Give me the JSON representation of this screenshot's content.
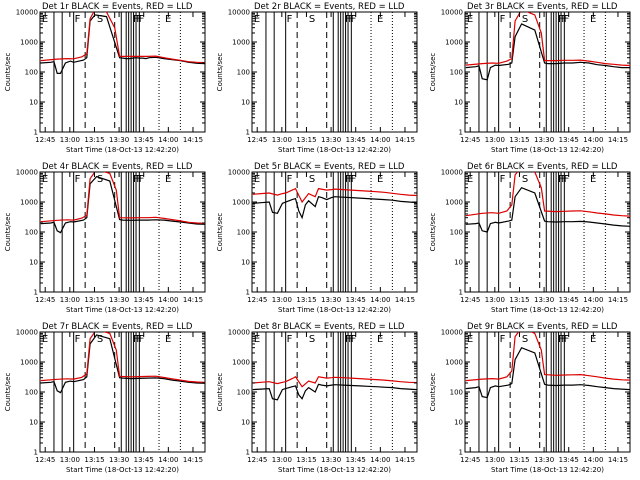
{
  "chart_data": {
    "type": "line",
    "ylabel": "Counts/sec",
    "xlabel": "Start Time (18-Oct-13 12:42:20)",
    "y_scale": "log",
    "ylim": [
      1,
      10000
    ],
    "y_ticks": [
      "1",
      "10",
      "100",
      "1000",
      "10000"
    ],
    "x_range_min": [
      -0.5,
      100
    ],
    "x_ticks": [
      "12:45",
      "13:00",
      "13:15",
      "13:30",
      "13:45",
      "14:00",
      "14:15"
    ],
    "x_tick_minutes": [
      2.67,
      17.67,
      32.67,
      47.67,
      62.67,
      77.67,
      92.67
    ],
    "series_colors": {
      "events": "#000000",
      "lld": "#dd0000"
    },
    "panels": [
      {
        "title": "Det 1r BLACK = Events, RED = LLD",
        "event_labels": [
          {
            "label": "E",
            "t": 0
          },
          {
            "label": "F",
            "t": 20
          },
          {
            "label": "S",
            "t": 33.5
          },
          {
            "label": "F",
            "t": 55.5
          },
          {
            "label": "F",
            "t": 57.5
          },
          {
            "label": "F",
            "t": 59
          },
          {
            "label": "E",
            "t": 75
          }
        ],
        "events_t": [
          0,
          6,
          8,
          10,
          12,
          15,
          18,
          20,
          26,
          28,
          30,
          33,
          40,
          48,
          50,
          52,
          54,
          56,
          58,
          60,
          62,
          64,
          66,
          70,
          75,
          85,
          90,
          95,
          100
        ],
        "events_v": [
          200,
          210,
          220,
          90,
          90,
          200,
          230,
          210,
          250,
          300,
          5000,
          8000,
          7000,
          300,
          290,
          280,
          280,
          290,
          300,
          290,
          290,
          280,
          300,
          310,
          280,
          240,
          210,
          195,
          190
        ],
        "lld_t": [
          0,
          10,
          16,
          20,
          25,
          28,
          30,
          33,
          40,
          45,
          48,
          55,
          60,
          65,
          70,
          75,
          80,
          85,
          90,
          95,
          100
        ],
        "lld_v": [
          240,
          270,
          280,
          275,
          320,
          400,
          6000,
          12000,
          10000,
          3000,
          330,
          330,
          330,
          330,
          340,
          300,
          270,
          245,
          220,
          210,
          205
        ]
      },
      {
        "title": "Det 2r BLACK = Events, RED = LLD",
        "event_labels": [
          {
            "label": "E",
            "t": 0
          },
          {
            "label": "F",
            "t": 20
          },
          {
            "label": "S",
            "t": 33.5
          },
          {
            "label": "F",
            "t": 55.5
          },
          {
            "label": "F",
            "t": 57.5
          },
          {
            "label": "F",
            "t": 59
          },
          {
            "label": "E",
            "t": 75
          }
        ],
        "events_t": [],
        "events_v": [],
        "lld_t": [],
        "lld_v": []
      },
      {
        "title": "Det 3r BLACK = Events, RED = LLD",
        "event_labels": [
          {
            "label": "E",
            "t": 0
          },
          {
            "label": "F",
            "t": 20
          },
          {
            "label": "S",
            "t": 33.5
          },
          {
            "label": "F",
            "t": 55.5
          },
          {
            "label": "F",
            "t": 57.5
          },
          {
            "label": "F",
            "t": 59
          },
          {
            "label": "E",
            "t": 75
          }
        ],
        "events_t": [
          0,
          6,
          8,
          10,
          13,
          15,
          18,
          20,
          26,
          28,
          30,
          34,
          42,
          48,
          50,
          55,
          60,
          65,
          70,
          75,
          80,
          85,
          90,
          95,
          100
        ],
        "events_v": [
          140,
          150,
          160,
          60,
          55,
          140,
          170,
          165,
          180,
          200,
          1500,
          4000,
          2500,
          200,
          190,
          190,
          200,
          200,
          210,
          200,
          175,
          165,
          150,
          140,
          140
        ],
        "lld_t": [
          0,
          10,
          16,
          20,
          25,
          28,
          30,
          34,
          42,
          46,
          48,
          55,
          60,
          65,
          70,
          75,
          80,
          85,
          90,
          95,
          100
        ],
        "lld_v": [
          170,
          190,
          200,
          195,
          230,
          280,
          5000,
          12000,
          8000,
          2000,
          240,
          240,
          245,
          245,
          250,
          230,
          210,
          190,
          180,
          170,
          165
        ]
      },
      {
        "title": "Det 4r BLACK = Events, RED = LLD",
        "event_labels": [
          {
            "label": "E",
            "t": 0
          },
          {
            "label": "F",
            "t": 20
          },
          {
            "label": "S",
            "t": 33.5
          },
          {
            "label": "F",
            "t": 55.5
          },
          {
            "label": "F",
            "t": 57.5
          },
          {
            "label": "F",
            "t": 59
          },
          {
            "label": "E",
            "t": 75
          }
        ],
        "events_t": [
          0,
          6,
          8,
          10,
          12,
          15,
          18,
          20,
          26,
          28,
          30,
          34,
          42,
          48,
          50,
          55,
          60,
          65,
          70,
          75,
          80,
          85,
          90,
          95,
          100
        ],
        "events_v": [
          190,
          200,
          210,
          110,
          95,
          200,
          220,
          215,
          250,
          300,
          4000,
          7000,
          5000,
          260,
          250,
          245,
          250,
          250,
          255,
          250,
          230,
          215,
          200,
          185,
          180
        ],
        "lld_t": [
          0,
          10,
          16,
          20,
          25,
          28,
          30,
          34,
          42,
          46,
          48,
          55,
          60,
          65,
          70,
          75,
          80,
          85,
          90,
          95,
          100
        ],
        "lld_v": [
          220,
          245,
          255,
          250,
          290,
          360,
          6000,
          12000,
          9000,
          2500,
          300,
          295,
          300,
          300,
          310,
          285,
          260,
          235,
          210,
          200,
          195
        ]
      },
      {
        "title": "Det 5r BLACK = Events, RED = LLD",
        "event_labels": [
          {
            "label": "E",
            "t": 0
          },
          {
            "label": "F",
            "t": 20
          },
          {
            "label": "S",
            "t": 33.5
          },
          {
            "label": "F",
            "t": 55.5
          },
          {
            "label": "F",
            "t": 57.5
          },
          {
            "label": "F",
            "t": 59
          },
          {
            "label": "E",
            "t": 75
          }
        ],
        "events_t": [
          0,
          5,
          10,
          12,
          15,
          18,
          20,
          24,
          26,
          28,
          30,
          32,
          34,
          38,
          40,
          42,
          45,
          48,
          50,
          55,
          60,
          65,
          70,
          75,
          80,
          85,
          90,
          95,
          100
        ],
        "events_v": [
          900,
          950,
          1000,
          450,
          420,
          900,
          1000,
          1200,
          1300,
          500,
          300,
          800,
          1100,
          700,
          1500,
          1400,
          1200,
          1400,
          1500,
          1450,
          1400,
          1350,
          1300,
          1250,
          1200,
          1150,
          1050,
          1000,
          950
        ],
        "lld_t": [
          0,
          5,
          10,
          15,
          18,
          20,
          24,
          26,
          30,
          34,
          38,
          40,
          45,
          48,
          50,
          55,
          60,
          65,
          70,
          75,
          80,
          85,
          90,
          95,
          100
        ],
        "lld_v": [
          1800,
          1900,
          2000,
          1700,
          1900,
          2000,
          2500,
          2800,
          1000,
          1900,
          1500,
          2800,
          2500,
          2600,
          2700,
          2600,
          2500,
          2400,
          2300,
          2200,
          2100,
          1950,
          1800,
          1700,
          1650
        ]
      },
      {
        "title": "Det 6r BLACK = Events, RED = LLD",
        "event_labels": [
          {
            "label": "E",
            "t": 0
          },
          {
            "label": "F",
            "t": 20
          },
          {
            "label": "S",
            "t": 33.5
          },
          {
            "label": "F",
            "t": 55.5
          },
          {
            "label": "F",
            "t": 57.5
          },
          {
            "label": "F",
            "t": 59
          },
          {
            "label": "E",
            "t": 75
          }
        ],
        "events_t": [
          0,
          6,
          8,
          10,
          13,
          15,
          18,
          20,
          26,
          28,
          30,
          34,
          42,
          48,
          50,
          55,
          60,
          65,
          70,
          75,
          80,
          85,
          90,
          95,
          100
        ],
        "events_v": [
          180,
          190,
          200,
          110,
          100,
          190,
          210,
          200,
          230,
          250,
          1500,
          3000,
          2000,
          230,
          220,
          215,
          220,
          220,
          225,
          215,
          200,
          185,
          170,
          160,
          155
        ],
        "lld_t": [
          0,
          10,
          16,
          20,
          25,
          28,
          30,
          34,
          42,
          46,
          48,
          55,
          60,
          65,
          70,
          75,
          80,
          85,
          90,
          95,
          100
        ],
        "lld_v": [
          350,
          420,
          440,
          420,
          500,
          800,
          8000,
          15000,
          10000,
          3000,
          500,
          480,
          490,
          500,
          510,
          470,
          430,
          400,
          370,
          350,
          340
        ]
      },
      {
        "title": "Det 7r BLACK = Events, RED = LLD",
        "event_labels": [
          {
            "label": "E",
            "t": 0
          },
          {
            "label": "F",
            "t": 20
          },
          {
            "label": "S",
            "t": 33.5
          },
          {
            "label": "F",
            "t": 55.5
          },
          {
            "label": "F",
            "t": 57.5
          },
          {
            "label": "F",
            "t": 59
          },
          {
            "label": "E",
            "t": 75
          }
        ],
        "events_t": [
          0,
          6,
          8,
          10,
          12,
          15,
          18,
          20,
          26,
          28,
          30,
          34,
          42,
          48,
          50,
          55,
          60,
          65,
          70,
          75,
          80,
          85,
          90,
          95,
          100
        ],
        "events_v": [
          200,
          210,
          220,
          110,
          95,
          210,
          230,
          220,
          260,
          320,
          4000,
          8000,
          6000,
          300,
          290,
          280,
          285,
          290,
          295,
          280,
          250,
          230,
          210,
          200,
          195
        ],
        "lld_t": [
          0,
          10,
          16,
          20,
          25,
          28,
          30,
          34,
          42,
          46,
          48,
          55,
          60,
          65,
          70,
          75,
          80,
          85,
          90,
          95,
          100
        ],
        "lld_v": [
          240,
          265,
          275,
          270,
          310,
          400,
          6000,
          12000,
          9000,
          2500,
          330,
          320,
          325,
          330,
          335,
          305,
          275,
          250,
          225,
          215,
          210
        ]
      },
      {
        "title": "Det 8r BLACK = Events, RED = LLD",
        "event_labels": [
          {
            "label": "E",
            "t": 0
          },
          {
            "label": "F",
            "t": 20
          },
          {
            "label": "S",
            "t": 33.5
          },
          {
            "label": "F",
            "t": 55.5
          },
          {
            "label": "F",
            "t": 57.5
          },
          {
            "label": "F",
            "t": 59
          },
          {
            "label": "E",
            "t": 75
          }
        ],
        "events_t": [
          0,
          5,
          10,
          12,
          15,
          18,
          20,
          24,
          26,
          28,
          30,
          32,
          34,
          38,
          40,
          42,
          45,
          48,
          50,
          55,
          60,
          65,
          70,
          75,
          80,
          85,
          90,
          95,
          100
        ],
        "events_v": [
          120,
          125,
          130,
          60,
          55,
          120,
          130,
          150,
          160,
          80,
          60,
          110,
          140,
          100,
          180,
          170,
          160,
          170,
          175,
          170,
          165,
          160,
          155,
          150,
          145,
          140,
          130,
          125,
          120
        ],
        "lld_t": [
          0,
          5,
          10,
          15,
          18,
          20,
          24,
          26,
          30,
          34,
          38,
          40,
          45,
          48,
          50,
          55,
          60,
          65,
          70,
          75,
          80,
          85,
          90,
          95,
          100
        ],
        "lld_v": [
          200,
          210,
          220,
          190,
          210,
          220,
          280,
          320,
          150,
          230,
          200,
          320,
          290,
          300,
          310,
          300,
          290,
          280,
          270,
          260,
          250,
          235,
          220,
          210,
          205
        ]
      },
      {
        "title": "Det 9r BLACK = Events, RED = LLD",
        "event_labels": [
          {
            "label": "E",
            "t": 0
          },
          {
            "label": "F",
            "t": 20
          },
          {
            "label": "S",
            "t": 33.5
          },
          {
            "label": "F",
            "t": 55.5
          },
          {
            "label": "F",
            "t": 57.5
          },
          {
            "label": "F",
            "t": 59
          },
          {
            "label": "E",
            "t": 75
          }
        ],
        "events_t": [
          0,
          6,
          8,
          10,
          13,
          15,
          18,
          20,
          26,
          28,
          30,
          34,
          42,
          48,
          50,
          55,
          60,
          65,
          70,
          75,
          80,
          85,
          90,
          95,
          100
        ],
        "events_v": [
          130,
          140,
          150,
          70,
          65,
          140,
          160,
          150,
          170,
          190,
          1200,
          3000,
          2000,
          180,
          170,
          165,
          170,
          170,
          175,
          165,
          150,
          140,
          130,
          125,
          120
        ],
        "lld_t": [
          0,
          10,
          16,
          20,
          25,
          28,
          30,
          34,
          42,
          46,
          48,
          55,
          60,
          65,
          70,
          75,
          80,
          85,
          90,
          95,
          100
        ],
        "lld_v": [
          240,
          270,
          280,
          270,
          320,
          500,
          7000,
          14000,
          9000,
          2500,
          380,
          360,
          370,
          375,
          380,
          350,
          320,
          290,
          270,
          255,
          250
        ]
      }
    ]
  }
}
